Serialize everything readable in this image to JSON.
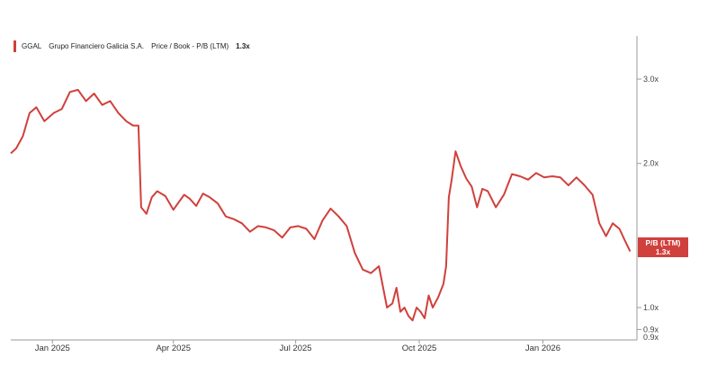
{
  "legend": {
    "ticker": "GGAL",
    "company": "Grupo Financiero Galicia S.A.",
    "metric": "Price / Book - P/B (LTM)",
    "value": "1.3x",
    "color": "#d0403c"
  },
  "last_value_badge": {
    "label": "P/B (LTM)",
    "value": "1.3x",
    "color": "#d0403c"
  },
  "chart_data": {
    "type": "line",
    "title": "",
    "xlabel": "",
    "ylabel": "",
    "y_scale": "log",
    "ylim": [
      0.9,
      3.5
    ],
    "xlim": [
      "2024-12-01",
      "2026-03-12"
    ],
    "y_ticks": [
      {
        "value": 3.0,
        "label": "3.0x"
      },
      {
        "value": 2.0,
        "label": "2.0x"
      },
      {
        "value": 1.0,
        "label": "1.0x"
      },
      {
        "value": 0.9,
        "label": "0.9x"
      }
    ],
    "x_ticks": [
      {
        "value": "2025-01-01",
        "label": "Jan 2025"
      },
      {
        "value": "2025-04-01",
        "label": "Apr 2025"
      },
      {
        "value": "2025-07-01",
        "label": "Jul 2025"
      },
      {
        "value": "2025-10-01",
        "label": "Oct 2025"
      },
      {
        "value": "2026-01-01",
        "label": "Jan 2026"
      }
    ],
    "grid": false,
    "legend_position": "top-left",
    "series": [
      {
        "name": "Grupo Financiero Galicia S.A.",
        "color": "#d0403c",
        "x": [
          "2024-12-01",
          "2024-12-05",
          "2024-12-10",
          "2024-12-15",
          "2024-12-20",
          "2024-12-26",
          "2025-01-02",
          "2025-01-08",
          "2025-01-14",
          "2025-01-20",
          "2025-01-26",
          "2025-02-01",
          "2025-02-07",
          "2025-02-13",
          "2025-02-19",
          "2025-02-25",
          "2025-03-02",
          "2025-03-06",
          "2025-03-08",
          "2025-03-12",
          "2025-03-16",
          "2025-03-20",
          "2025-03-26",
          "2025-04-01",
          "2025-04-05",
          "2025-04-09",
          "2025-04-13",
          "2025-04-18",
          "2025-04-23",
          "2025-04-28",
          "2025-05-04",
          "2025-05-10",
          "2025-05-16",
          "2025-05-22",
          "2025-05-28",
          "2025-06-03",
          "2025-06-09",
          "2025-06-15",
          "2025-06-21",
          "2025-06-27",
          "2025-07-03",
          "2025-07-09",
          "2025-07-15",
          "2025-07-21",
          "2025-07-27",
          "2025-08-02",
          "2025-08-08",
          "2025-08-14",
          "2025-08-20",
          "2025-08-26",
          "2025-09-01",
          "2025-09-07",
          "2025-09-11",
          "2025-09-14",
          "2025-09-17",
          "2025-09-20",
          "2025-09-23",
          "2025-09-26",
          "2025-09-29",
          "2025-10-02",
          "2025-10-05",
          "2025-10-08",
          "2025-10-11",
          "2025-10-15",
          "2025-10-19",
          "2025-10-21",
          "2025-10-23",
          "2025-10-25",
          "2025-10-28",
          "2025-11-01",
          "2025-11-05",
          "2025-11-09",
          "2025-11-13",
          "2025-11-17",
          "2025-11-21",
          "2025-11-27",
          "2025-12-03",
          "2025-12-09",
          "2025-12-15",
          "2025-12-21",
          "2025-12-27",
          "2026-01-02",
          "2026-01-08",
          "2026-01-14",
          "2026-01-20",
          "2026-01-26",
          "2026-02-01",
          "2026-02-07",
          "2026-02-12",
          "2026-02-17",
          "2026-02-22",
          "2026-02-27",
          "2026-03-03",
          "2026-03-07"
        ],
        "values": [
          2.1,
          2.15,
          2.28,
          2.55,
          2.62,
          2.45,
          2.55,
          2.6,
          2.82,
          2.85,
          2.7,
          2.8,
          2.65,
          2.7,
          2.55,
          2.45,
          2.4,
          2.4,
          1.62,
          1.57,
          1.7,
          1.75,
          1.71,
          1.6,
          1.66,
          1.72,
          1.69,
          1.63,
          1.73,
          1.7,
          1.65,
          1.55,
          1.53,
          1.5,
          1.44,
          1.48,
          1.47,
          1.45,
          1.4,
          1.47,
          1.48,
          1.46,
          1.39,
          1.52,
          1.61,
          1.55,
          1.48,
          1.3,
          1.2,
          1.18,
          1.22,
          1.0,
          1.02,
          1.1,
          0.98,
          1.0,
          0.96,
          0.94,
          1.0,
          0.98,
          0.95,
          1.06,
          1.0,
          1.05,
          1.12,
          1.22,
          1.7,
          1.84,
          2.12,
          1.97,
          1.86,
          1.79,
          1.62,
          1.77,
          1.75,
          1.62,
          1.72,
          1.9,
          1.88,
          1.85,
          1.91,
          1.87,
          1.88,
          1.87,
          1.8,
          1.87,
          1.8,
          1.72,
          1.5,
          1.41,
          1.5,
          1.46,
          1.38,
          1.31
        ]
      }
    ]
  }
}
